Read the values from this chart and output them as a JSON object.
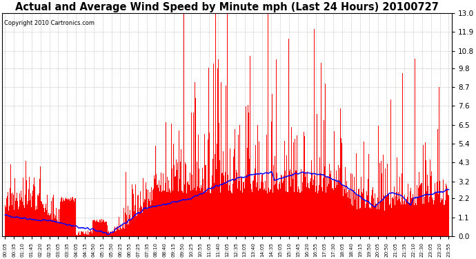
{
  "title": "Actual and Average Wind Speed by Minute mph (Last 24 Hours) 20100727",
  "copyright": "Copyright 2010 Cartronics.com",
  "yticks": [
    0.0,
    1.1,
    2.2,
    3.2,
    4.3,
    5.4,
    6.5,
    7.6,
    8.7,
    9.8,
    10.8,
    11.9,
    13.0
  ],
  "ylim": [
    0.0,
    13.0
  ],
  "bar_color": "#ff0000",
  "line_color": "#0000ff",
  "bg_color": "#ffffff",
  "grid_color": "#aaaaaa",
  "title_fontsize": 10.5,
  "copyright_fontsize": 6.0,
  "xtick_fontsize": 5.2,
  "ytick_fontsize": 7.5
}
